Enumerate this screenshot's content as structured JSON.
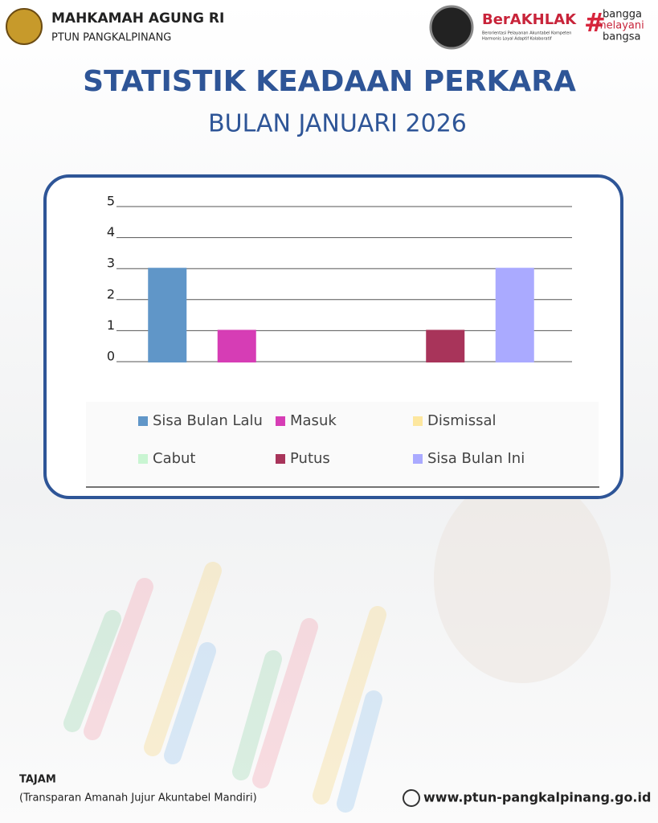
{
  "header": {
    "org": "MAHKAMAH AGUNG RI",
    "unit": "PTUN PANGKALPINANG",
    "brand": "BerAKHLAK",
    "brand_tagline_1": "Berorientasi Pelayanan Akuntabel Kompeten",
    "brand_tagline_2": "Harmonis Loyal Adaptif Kolaboratif",
    "slogan": [
      "bangga",
      "melayani",
      "bangsa"
    ]
  },
  "chart_data": {
    "type": "bar",
    "title": "STATISTIK KEADAAN PERKARA",
    "subtitle": "BULAN JANUARI 2026",
    "ylim": [
      0,
      5
    ],
    "yticks": [
      0,
      1,
      2,
      3,
      4,
      5
    ],
    "grid": true,
    "series": [
      {
        "name": "Sisa Bulan Lalu",
        "color": "#6096c8",
        "values": [
          3
        ]
      },
      {
        "name": "Masuk",
        "color": "#d63db5",
        "values": [
          1
        ]
      },
      {
        "name": "Dismissal",
        "color": "#fde79f",
        "values": [
          0
        ]
      },
      {
        "name": "Cabut",
        "color": "#c9f5d2",
        "values": [
          0
        ]
      },
      {
        "name": "Putus",
        "color": "#a8345a",
        "values": [
          1
        ]
      },
      {
        "name": "Sisa Bulan Ini",
        "color": "#aaaaff",
        "values": [
          3
        ]
      }
    ]
  },
  "footer": {
    "motto": "TAJAM",
    "motto_long": "(Transparan Amanah Jujur Akuntabel Mandiri)",
    "website": "www.ptun-pangkalpinang.go.id"
  }
}
